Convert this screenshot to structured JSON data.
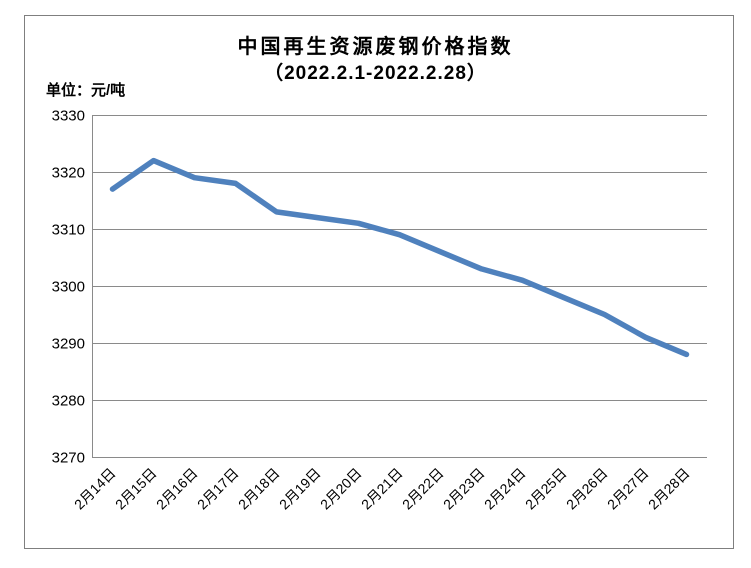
{
  "header": {
    "title": "中国再生资源废钢价格指数",
    "subtitle": "（2022.2.1-2022.2.28）",
    "unit_label": "单位：元/吨"
  },
  "colors": {
    "line": "#4F81BD",
    "gridline": "#8A8A8A",
    "axis": "#8A8A8A",
    "border": "#7F7F7F",
    "text": "#000000",
    "background": "#FFFFFF"
  },
  "chart_data": {
    "type": "line",
    "title": "中国再生资源废钢价格指数",
    "subtitle": "（2022.2.1-2022.2.28）",
    "unit": "元/吨",
    "categories": [
      "2月14日",
      "2月15日",
      "2月16日",
      "2月17日",
      "2月18日",
      "2月19日",
      "2月20日",
      "2月21日",
      "2月22日",
      "2月23日",
      "2月24日",
      "2月25日",
      "2月26日",
      "2月27日",
      "2月28日"
    ],
    "values": [
      3317,
      3322,
      3319,
      3318,
      3313,
      3312,
      3311,
      3309,
      3306,
      3303,
      3301,
      3298,
      3295,
      3291,
      3288
    ],
    "ylim": [
      3270,
      3330
    ],
    "yticks": [
      3330,
      3320,
      3310,
      3300,
      3290,
      3280,
      3270
    ],
    "ytick_step": 10,
    "grid": true,
    "legend": "none",
    "x_label_rotation": -45
  }
}
